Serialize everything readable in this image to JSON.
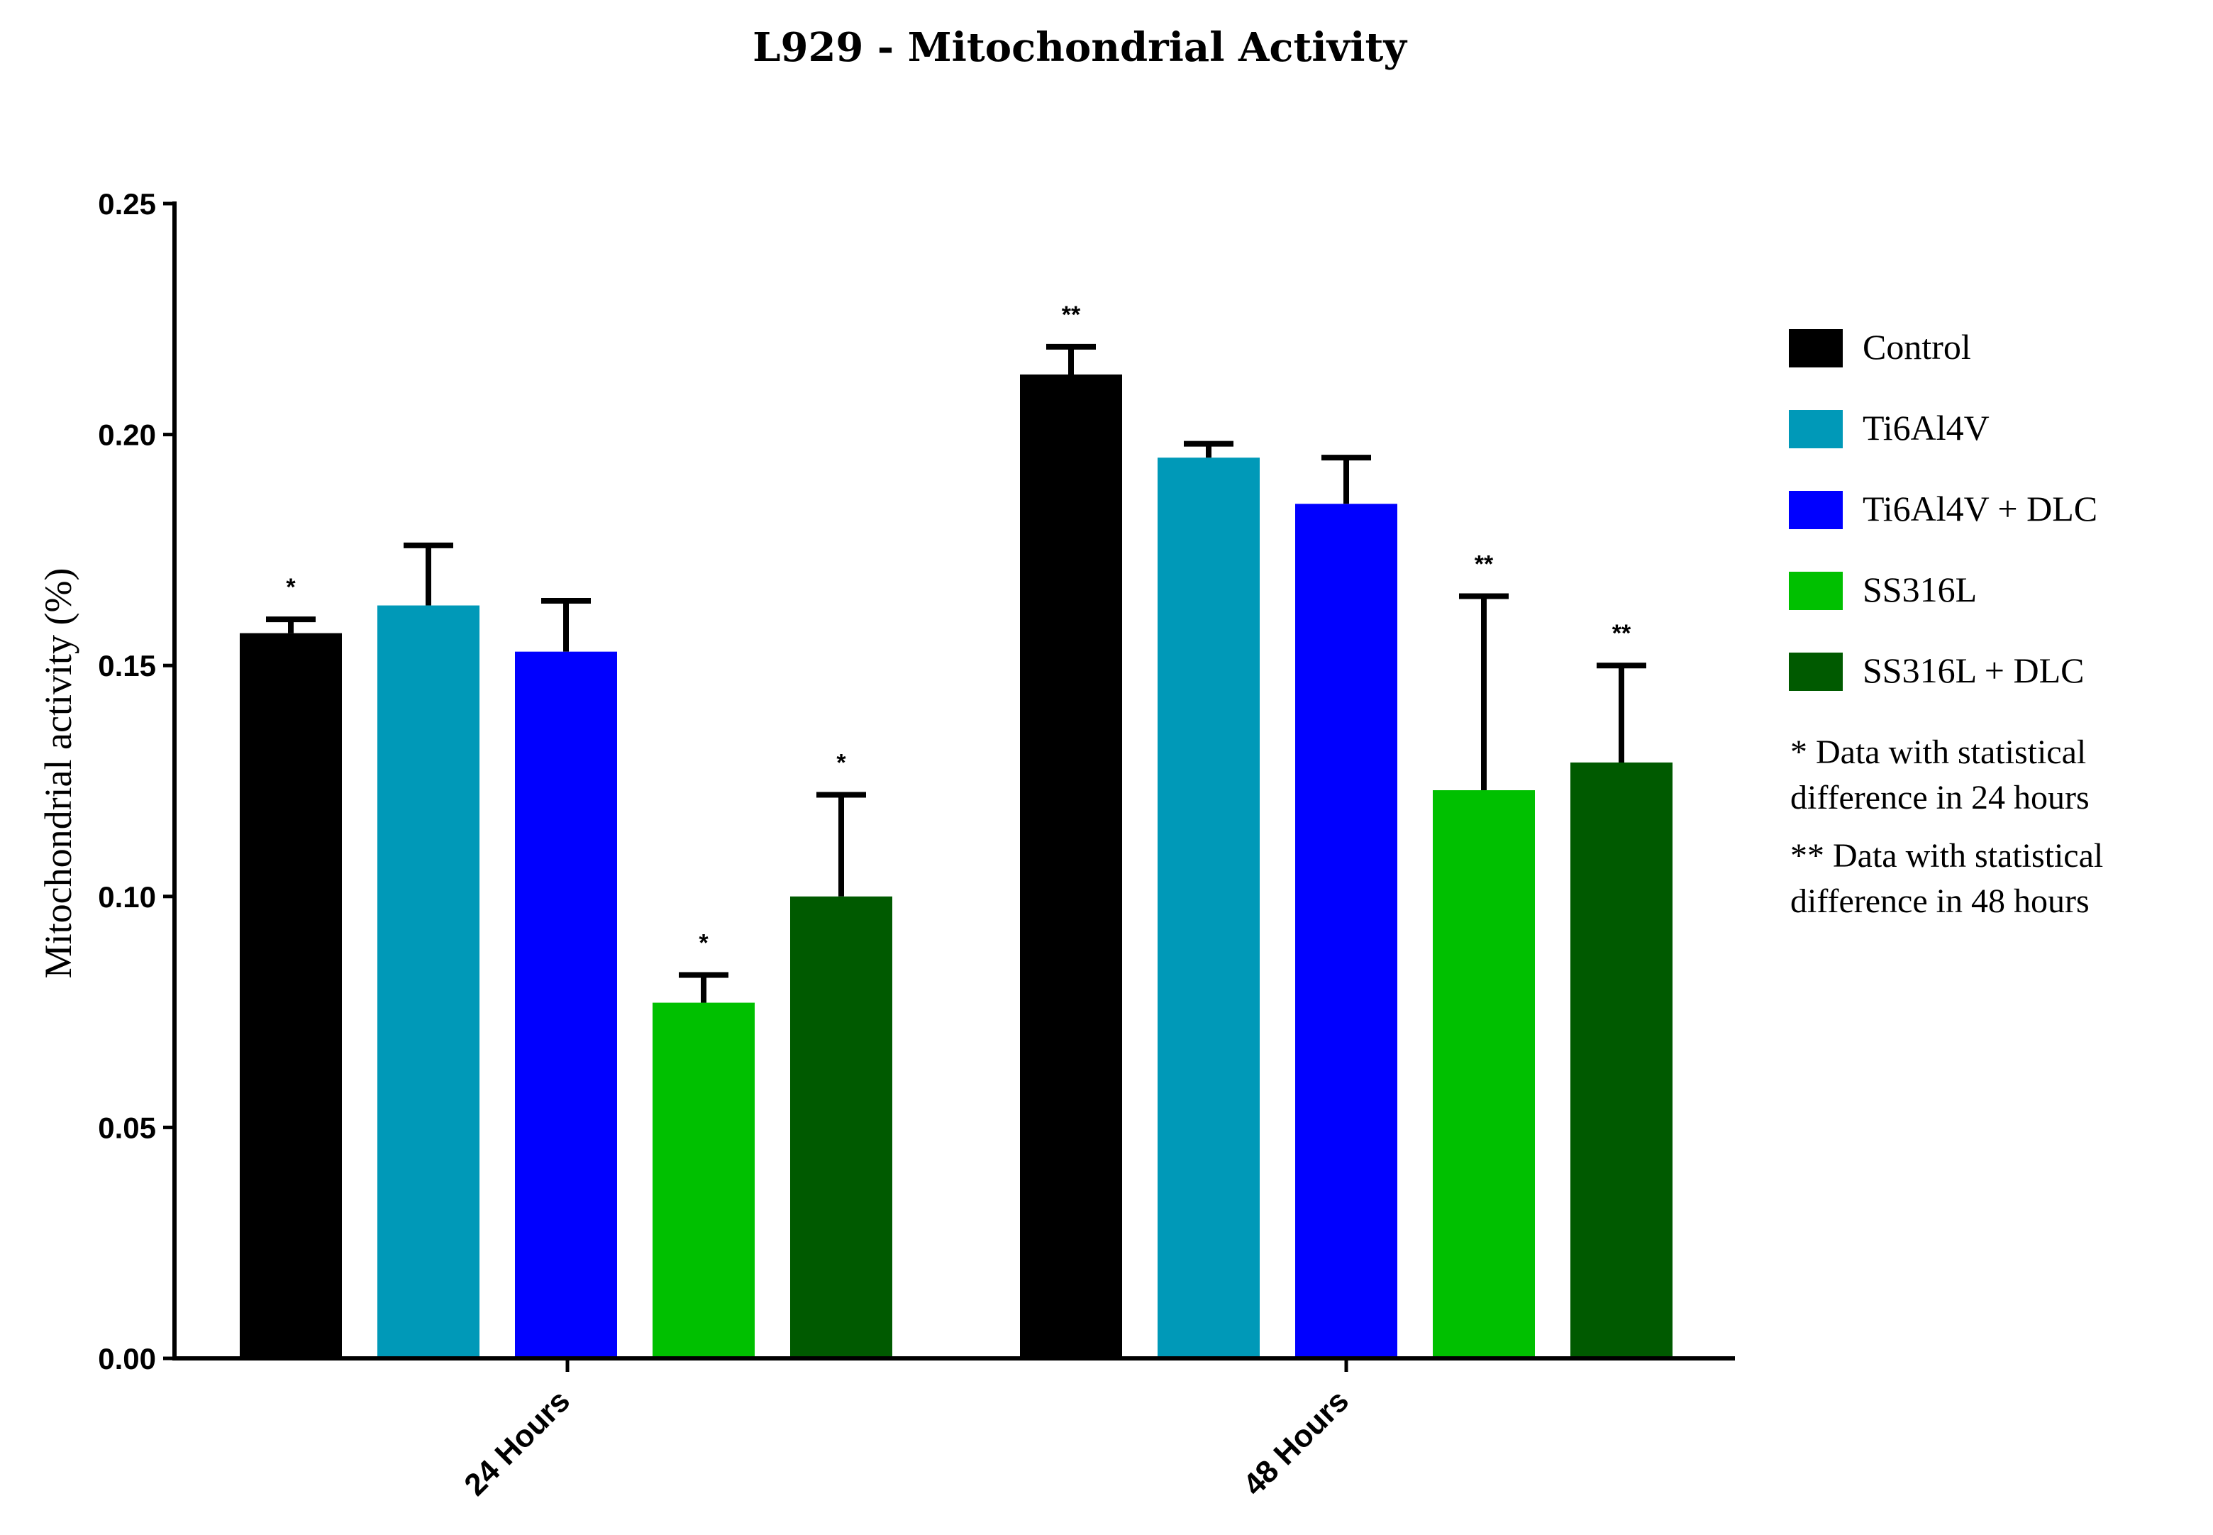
{
  "chart_data": {
    "type": "bar",
    "title": "L929 - Mitochondrial Activity",
    "xlabel": "",
    "ylabel": "Mitochondrial activity (%)",
    "ylim": [
      0,
      0.25
    ],
    "yticks": [
      "0.00",
      "0.05",
      "0.10",
      "0.15",
      "0.20",
      "0.25"
    ],
    "categories": [
      "24 Hours",
      "48 Hours"
    ],
    "series": [
      {
        "name": "Control",
        "color": "#000000",
        "values": [
          0.157,
          0.213
        ],
        "errors": [
          0.003,
          0.006
        ],
        "significance": [
          "*",
          "**"
        ]
      },
      {
        "name": "Ti6Al4V",
        "color": "#0099B8",
        "values": [
          0.163,
          0.195
        ],
        "errors": [
          0.013,
          0.003
        ],
        "significance": [
          "",
          ""
        ]
      },
      {
        "name": "Ti6Al4V +  DLC",
        "color": "#0000FF",
        "values": [
          0.153,
          0.185
        ],
        "errors": [
          0.011,
          0.01
        ],
        "significance": [
          "",
          ""
        ]
      },
      {
        "name": "SS316L",
        "color": "#00C000",
        "values": [
          0.077,
          0.123
        ],
        "errors": [
          0.006,
          0.042
        ],
        "significance": [
          "*",
          "**"
        ]
      },
      {
        "name": "SS316L + DLC",
        "color": "#005A00",
        "values": [
          0.1,
          0.129
        ],
        "errors": [
          0.022,
          0.021
        ],
        "significance": [
          "*",
          "**"
        ]
      }
    ],
    "legend_position": "right",
    "notes": [
      [
        "* Data with statistical",
        "difference in 24 hours"
      ],
      [
        "** Data with statistical",
        "difference in 48 hours"
      ]
    ]
  }
}
